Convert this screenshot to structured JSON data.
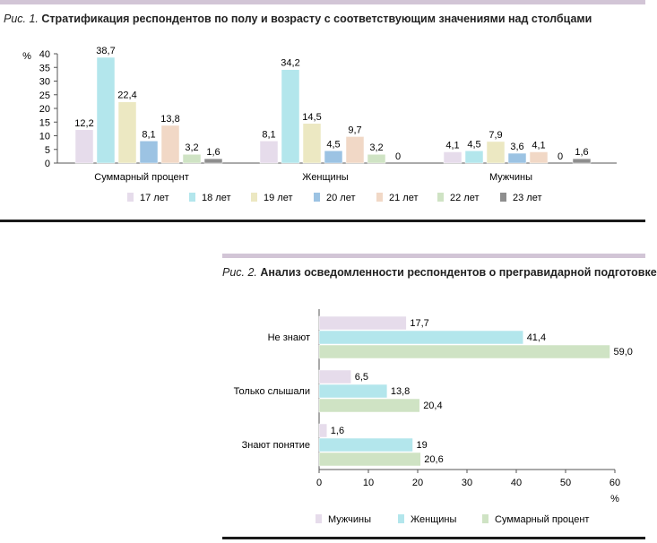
{
  "figure1": {
    "title_prefix": "Рис. 1.",
    "title_text": "Стратификация респондентов по полу и возрасту с соответствующим значениями над столбцами"
  },
  "figure2": {
    "title_prefix": "Рис. 2.",
    "title_text": "Анализ осведомленности респондентов о прегравидарной подготовке"
  },
  "colors": {
    "accent_band": "#d2c5d6",
    "rule": "#1a1a1a"
  },
  "chart_data": [
    {
      "type": "bar",
      "title": "Рис. 1. Стратификация респондентов по полу и возрасту с соответствующим значениями над столбцами",
      "ylabel": "%",
      "ylim": [
        0,
        40
      ],
      "yticks": [
        0,
        5,
        10,
        15,
        20,
        25,
        30,
        35,
        40
      ],
      "categories": [
        "Суммарный процент",
        "Женщины",
        "Мужчины"
      ],
      "series": [
        {
          "name": "17 лет",
          "values": [
            12.2,
            8.1,
            4.1
          ],
          "labels": [
            "12,2",
            "8,1",
            "4,1"
          ],
          "color": "#e6dceb"
        },
        {
          "name": "18 лет",
          "values": [
            38.7,
            34.2,
            4.5
          ],
          "labels": [
            "38,7",
            "34,2",
            "4,5"
          ],
          "color": "#b3e6ec"
        },
        {
          "name": "19 лет",
          "values": [
            22.4,
            14.5,
            7.9
          ],
          "labels": [
            "22,4",
            "14,5",
            "7,9"
          ],
          "color": "#ece8c2"
        },
        {
          "name": "20 лет",
          "values": [
            8.1,
            4.5,
            3.6
          ],
          "labels": [
            "8,1",
            "4,5",
            "3,6"
          ],
          "color": "#9cc3e3"
        },
        {
          "name": "21 лет",
          "values": [
            13.8,
            9.7,
            4.1
          ],
          "labels": [
            "13,8",
            "9,7",
            "4,1"
          ],
          "color": "#f1d8c6"
        },
        {
          "name": "22 лет",
          "values": [
            3.2,
            3.2,
            0
          ],
          "labels": [
            "3,2",
            "3,2",
            "0"
          ],
          "color": "#cfe3c4"
        },
        {
          "name": "23 лет",
          "values": [
            1.6,
            0,
            1.6
          ],
          "labels": [
            "1,6",
            "0",
            "1,6"
          ],
          "color": "#8e8e8e"
        }
      ],
      "legend": "bottom",
      "grid": false
    },
    {
      "type": "bar",
      "orientation": "horizontal",
      "title": "Рис. 2. Анализ осведомленности респондентов о прегравидарной подготовке",
      "xlabel": "%",
      "xlim": [
        0,
        60
      ],
      "xticks": [
        0,
        10,
        20,
        30,
        40,
        50,
        60
      ],
      "categories": [
        "Не знают",
        "Только слышали",
        "Знают понятие"
      ],
      "series": [
        {
          "name": "Мужчины",
          "values": [
            17.7,
            6.5,
            1.6
          ],
          "labels": [
            "17,7",
            "6,5",
            "1,6"
          ],
          "color": "#e6dceb"
        },
        {
          "name": "Женщины",
          "values": [
            41.4,
            13.8,
            19
          ],
          "labels": [
            "41,4",
            "13,8",
            "19"
          ],
          "color": "#b3e6ec"
        },
        {
          "name": "Суммарный процент",
          "values": [
            59.0,
            20.4,
            20.6
          ],
          "labels": [
            "59,0",
            "20,4",
            "20,6"
          ],
          "color": "#cfe3c4"
        }
      ],
      "legend": "bottom",
      "grid": false
    }
  ]
}
